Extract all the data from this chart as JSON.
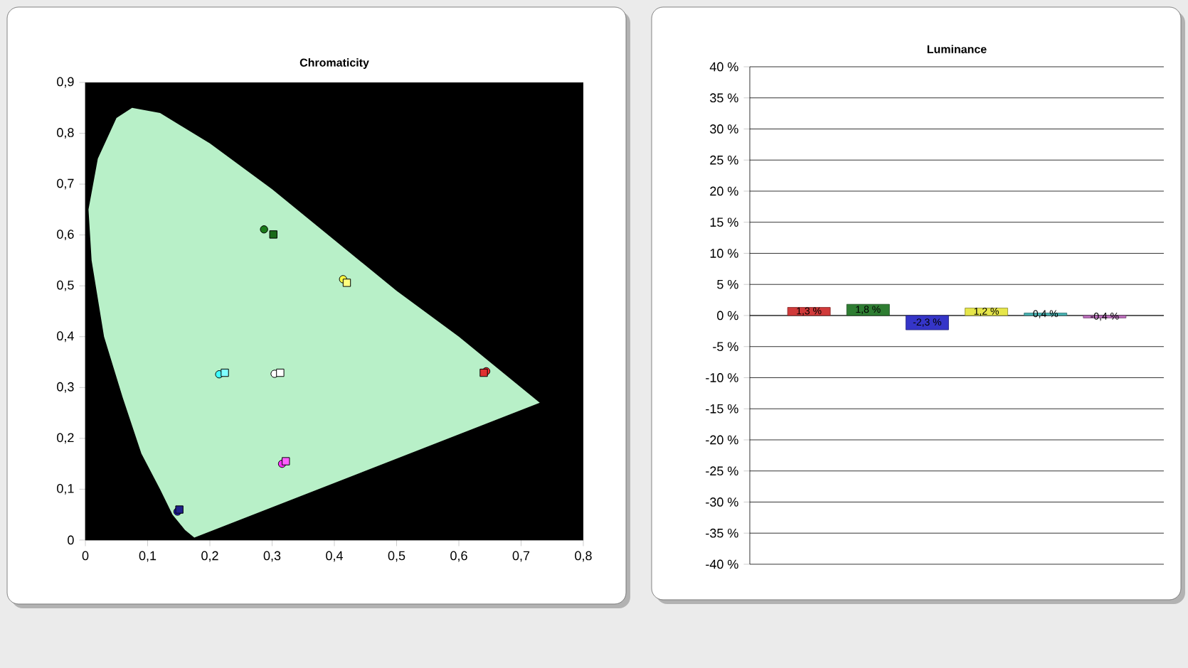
{
  "chart_data": [
    {
      "type": "scatter",
      "title": "Chromaticity",
      "xlim": [
        0,
        0.8
      ],
      "ylim": [
        0,
        0.9
      ],
      "xticks": [
        0,
        {
          "value": 0.1,
          "label": "0,1"
        },
        {
          "value": 0.2,
          "label": "0,2"
        },
        {
          "value": 0.3,
          "label": "0,3"
        },
        {
          "value": 0.4,
          "label": "0,4"
        },
        {
          "value": 0.5,
          "label": "0,5"
        },
        {
          "value": 0.6,
          "label": "0,6"
        },
        {
          "value": 0.7,
          "label": "0,7"
        },
        {
          "value": 0.8,
          "label": "0,8"
        }
      ],
      "yticks": [
        0,
        {
          "value": 0.1,
          "label": "0,1"
        },
        {
          "value": 0.2,
          "label": "0,2"
        },
        {
          "value": 0.3,
          "label": "0,3"
        },
        {
          "value": 0.4,
          "label": "0,4"
        },
        {
          "value": 0.5,
          "label": "0,5"
        },
        {
          "value": 0.6,
          "label": "0,6"
        },
        {
          "value": 0.7,
          "label": "0,7"
        },
        {
          "value": 0.8,
          "label": "0,8"
        },
        {
          "value": 0.9,
          "label": "0,9"
        }
      ],
      "series": [
        {
          "type": "area",
          "color": "#b8f0c8",
          "x": [
            0.175,
            0.16,
            0.14,
            0.12,
            0.09,
            0.06,
            0.03,
            0.01,
            0.005,
            0.02,
            0.05,
            0.075,
            0.12,
            0.2,
            0.3,
            0.4,
            0.5,
            0.6,
            0.73
          ],
          "values": [
            0.005,
            0.02,
            0.05,
            0.1,
            0.17,
            0.28,
            0.4,
            0.55,
            0.65,
            0.75,
            0.83,
            0.85,
            0.84,
            0.78,
            0.69,
            0.59,
            0.49,
            0.4,
            0.27
          ]
        },
        {
          "marker": "circle",
          "x": [
            0.287,
            0.414,
            0.215,
            0.304,
            0.644,
            0.316,
            0.148
          ],
          "values": [
            0.611,
            0.513,
            0.326,
            0.327,
            0.332,
            0.15,
            0.056
          ],
          "colors": [
            "#1a7a1a",
            "#ffff40",
            "#40ffff",
            "#ffffff",
            "#ff3030",
            "#ff30ff",
            "#2020c0"
          ]
        },
        {
          "marker": "square",
          "x": [
            0.302,
            0.42,
            0.224,
            0.313,
            0.64,
            0.322,
            0.151
          ],
          "values": [
            0.601,
            0.506,
            0.329,
            0.329,
            0.329,
            0.155,
            0.06
          ],
          "colors": [
            "#1a6a1a",
            "#ffff80",
            "#80ffff",
            "#ffffff",
            "#e03030",
            "#ff60ff",
            "#20208a"
          ]
        }
      ]
    },
    {
      "type": "bar",
      "title": "Luminance",
      "categories": [
        null,
        null,
        null,
        null,
        null,
        null
      ],
      "values": [
        1.3,
        1.8,
        -2.3,
        1.2,
        0.4,
        -0.4
      ],
      "value_labels": [
        "1,3 %",
        "1,8 %",
        "-2,3 %",
        "1,2 %",
        "0,4 %",
        "-0,4 %"
      ],
      "colors": [
        "#d03a3a",
        "#2e7d32",
        "#3535c8",
        "#e6e64a",
        "#48b4b4",
        "#c070c0"
      ],
      "ylim": [
        -40,
        40
      ],
      "yticks": [
        {
          "value": -40,
          "label": "-40 %"
        },
        {
          "value": -35,
          "label": "-35 %"
        },
        {
          "value": -30,
          "label": "-30 %"
        },
        {
          "value": -25,
          "label": "-25 %"
        },
        {
          "value": -20,
          "label": "-20 %"
        },
        {
          "value": -15,
          "label": "-15 %"
        },
        {
          "value": -10,
          "label": "-10 %"
        },
        {
          "value": -5,
          "label": "-5 %"
        },
        {
          "value": 0,
          "label": "0 %"
        },
        {
          "value": 5,
          "label": "5 %"
        },
        {
          "value": 10,
          "label": "10 %"
        },
        {
          "value": 15,
          "label": "15 %"
        },
        {
          "value": 20,
          "label": "20 %"
        },
        {
          "value": 25,
          "label": "25 %"
        },
        {
          "value": 30,
          "label": "30 %"
        },
        {
          "value": 35,
          "label": "35 %"
        },
        {
          "value": 40,
          "label": "40 %"
        }
      ],
      "grid": "y",
      "tick_labels": "y"
    }
  ]
}
